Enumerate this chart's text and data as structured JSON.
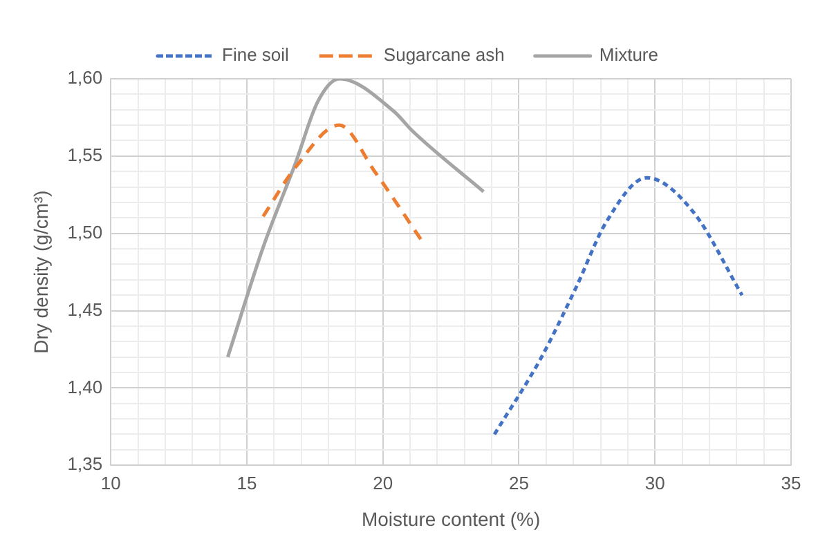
{
  "chart_data": {
    "type": "line",
    "xlabel": "Moisture content (%)",
    "ylabel": "Dry density (g/cm³)",
    "xlim": [
      10,
      35
    ],
    "xticks": [
      10,
      {
        "value": 11,
        "label": null
      },
      {
        "value": 12,
        "label": null
      },
      {
        "value": 13,
        "label": null
      },
      {
        "value": 14,
        "label": null
      },
      15,
      {
        "value": 16,
        "label": null
      },
      {
        "value": 17,
        "label": null
      },
      {
        "value": 18,
        "label": null
      },
      {
        "value": 19,
        "label": null
      },
      20,
      {
        "value": 21,
        "label": null
      },
      {
        "value": 22,
        "label": null
      },
      {
        "value": 23,
        "label": null
      },
      {
        "value": 24,
        "label": null
      },
      25,
      {
        "value": 26,
        "label": null
      },
      {
        "value": 27,
        "label": null
      },
      {
        "value": 28,
        "label": null
      },
      {
        "value": 29,
        "label": null
      },
      30,
      {
        "value": 31,
        "label": null
      },
      {
        "value": 32,
        "label": null
      },
      {
        "value": 33,
        "label": null
      },
      {
        "value": 34,
        "label": null
      },
      35
    ],
    "ylim": [
      1.35,
      1.6
    ],
    "yticks": [
      {
        "value": 1.35,
        "label": "1,35"
      },
      {
        "value": 1.36,
        "label": null
      },
      {
        "value": 1.37,
        "label": null
      },
      {
        "value": 1.38,
        "label": null
      },
      {
        "value": 1.39,
        "label": null
      },
      {
        "value": 1.4,
        "label": "1,40"
      },
      {
        "value": 1.41,
        "label": null
      },
      {
        "value": 1.42,
        "label": null
      },
      {
        "value": 1.43,
        "label": null
      },
      {
        "value": 1.44,
        "label": null
      },
      {
        "value": 1.45,
        "label": "1,45"
      },
      {
        "value": 1.46,
        "label": null
      },
      {
        "value": 1.47,
        "label": null
      },
      {
        "value": 1.48,
        "label": null
      },
      {
        "value": 1.49,
        "label": null
      },
      {
        "value": 1.5,
        "label": "1,50"
      },
      {
        "value": 1.51,
        "label": null
      },
      {
        "value": 1.52,
        "label": null
      },
      {
        "value": 1.53,
        "label": null
      },
      {
        "value": 1.54,
        "label": null
      },
      {
        "value": 1.55,
        "label": "1,55"
      },
      {
        "value": 1.56,
        "label": null
      },
      {
        "value": 1.57,
        "label": null
      },
      {
        "value": 1.58,
        "label": null
      },
      {
        "value": 1.59,
        "label": null
      },
      {
        "value": 1.6,
        "label": "1,60"
      }
    ],
    "grid": true,
    "legend": "top",
    "marker": "none",
    "series": [
      {
        "name": "Fine soil",
        "color": "#4472c4",
        "line_style": "dotted",
        "x": [
          24.1,
          25.8,
          27.1,
          28.2,
          29.7,
          31.4,
          33.2
        ],
        "values": [
          1.37,
          1.419,
          1.465,
          1.507,
          1.536,
          1.514,
          1.46
        ]
      },
      {
        "name": "Sugarcane ash",
        "color": "#ed7d31",
        "line_style": "dashed",
        "x": [
          15.6,
          16.8,
          18.4,
          19.7,
          21.4
        ],
        "values": [
          1.511,
          1.543,
          1.57,
          1.54,
          1.496
        ]
      },
      {
        "name": "Mixture",
        "color": "#a5a5a5",
        "line_style": "solid",
        "x": [
          14.3,
          15.6,
          16.8,
          17.6,
          18.4,
          20.4,
          21.1,
          23.7
        ],
        "values": [
          1.42,
          1.491,
          1.546,
          1.585,
          1.6,
          1.579,
          1.566,
          1.527
        ]
      }
    ]
  }
}
